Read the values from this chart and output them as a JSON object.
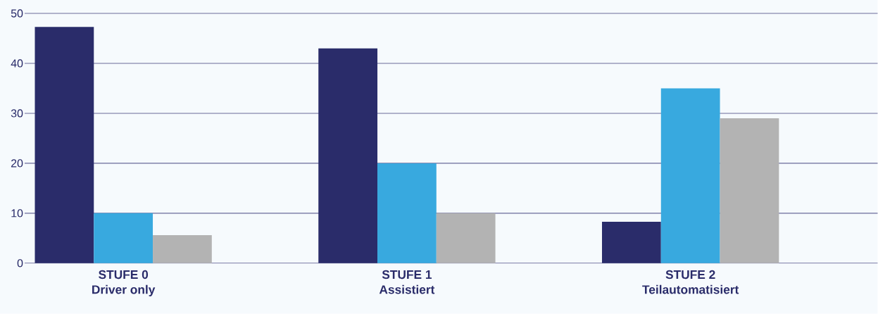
{
  "chart_data": {
    "type": "bar",
    "categories": [
      "STUFE 0 Driver only",
      "STUFE 1 Assistiert",
      "STUFE 2 Teilautomatisiert"
    ],
    "series": [
      {
        "color": "#2a2c6a",
        "values": [
          47.3,
          43,
          8.3
        ]
      },
      {
        "color": "#38a9df",
        "values": [
          10,
          20,
          35
        ]
      },
      {
        "color": "#b3b3b3",
        "values": [
          5.6,
          10,
          29
        ]
      }
    ],
    "ylim": [
      0,
      50
    ],
    "yticks": [
      0,
      10,
      20,
      30,
      40,
      50
    ],
    "grid": "y"
  }
}
